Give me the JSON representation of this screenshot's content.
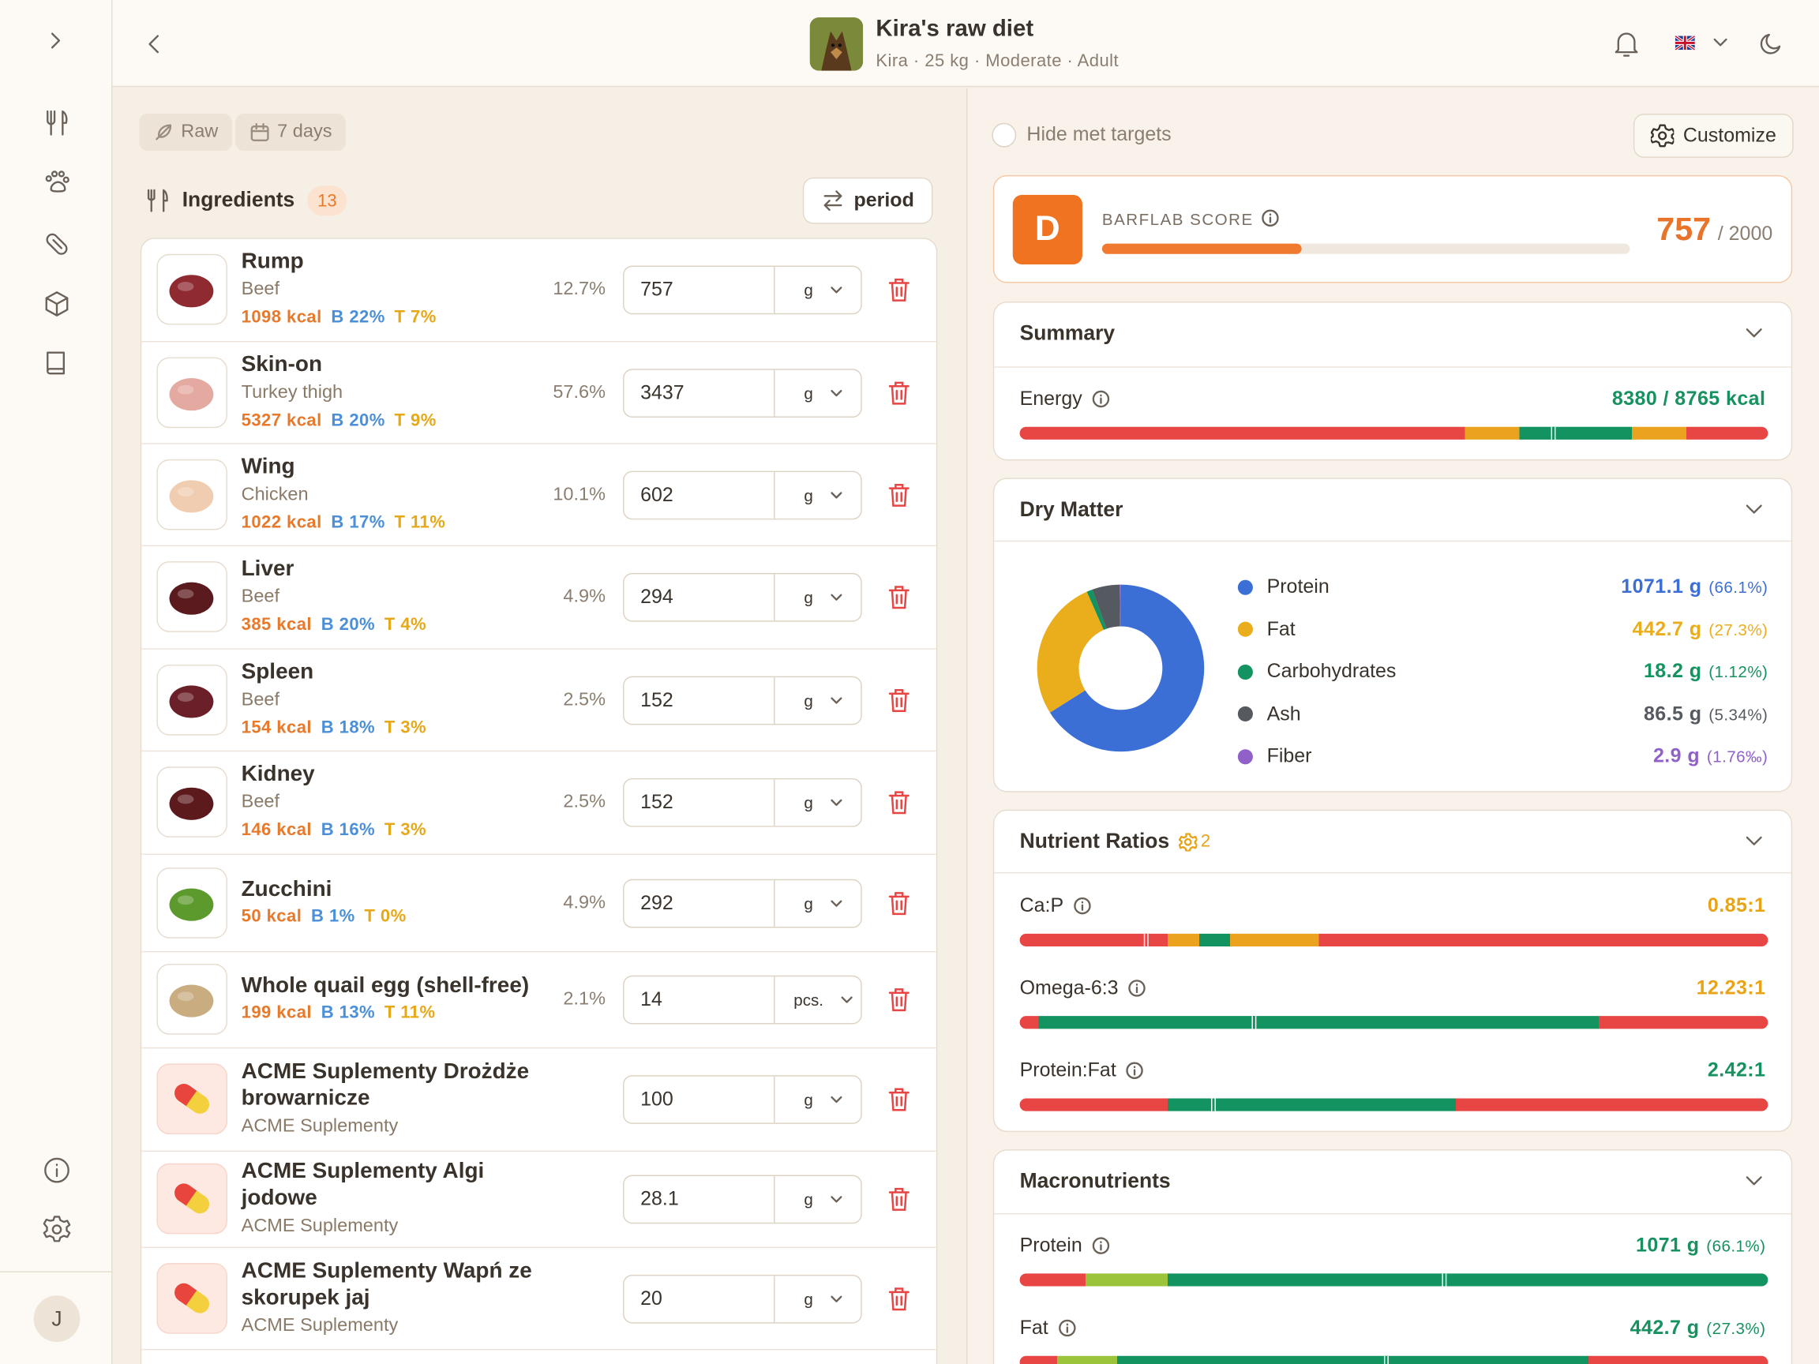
{
  "sidebar": {
    "avatar": "J"
  },
  "header": {
    "title": "Kira's raw diet",
    "subtitle": "Kira · 25 kg · Moderate · Adult"
  },
  "filters": [
    "Raw",
    "7 days"
  ],
  "ingredients": {
    "title": "Ingredients",
    "count": 13,
    "button": "period",
    "items": [
      {
        "name": "Rump",
        "sub": "Beef",
        "kcal": "1098 kcal",
        "b": "B 22%",
        "t": "T 7%",
        "pct": "12.7%",
        "amount": "757",
        "unit": "g",
        "thumb_color": "#8e2a30"
      },
      {
        "name": "Skin-on",
        "sub": "Turkey thigh",
        "kcal": "5327 kcal",
        "b": "B 20%",
        "t": "T 9%",
        "pct": "57.6%",
        "amount": "3437",
        "unit": "g",
        "thumb_color": "#e4a9a0"
      },
      {
        "name": "Wing",
        "sub": "Chicken",
        "kcal": "1022 kcal",
        "b": "B 17%",
        "t": "T 11%",
        "pct": "10.1%",
        "amount": "602",
        "unit": "g",
        "thumb_color": "#f0cdb0"
      },
      {
        "name": "Liver",
        "sub": "Beef",
        "kcal": "385 kcal",
        "b": "B 20%",
        "t": "T 4%",
        "pct": "4.9%",
        "amount": "294",
        "unit": "g",
        "thumb_color": "#5a1a1e"
      },
      {
        "name": "Spleen",
        "sub": "Beef",
        "kcal": "154 kcal",
        "b": "B 18%",
        "t": "T 3%",
        "pct": "2.5%",
        "amount": "152",
        "unit": "g",
        "thumb_color": "#6b1f28"
      },
      {
        "name": "Kidney",
        "sub": "Beef",
        "kcal": "146 kcal",
        "b": "B 16%",
        "t": "T 3%",
        "pct": "2.5%",
        "amount": "152",
        "unit": "g",
        "thumb_color": "#5c1a1c"
      },
      {
        "name": "Zucchini",
        "kcal": "50 kcal",
        "b": "B 1%",
        "t": "T 0%",
        "pct": "4.9%",
        "amount": "292",
        "unit": "g",
        "thumb_color": "#5c9a2e"
      },
      {
        "name": "Whole quail egg (shell-free)",
        "kcal": "199 kcal",
        "b": "B 13%",
        "t": "T 11%",
        "pct": "2.1%",
        "amount": "14",
        "unit": "pcs.",
        "thumb_color": "#c9ad80"
      },
      {
        "name": "ACME Suplementy Drożdże browarnicze",
        "sub": "ACME Suplementy",
        "amount": "100",
        "unit": "g"
      },
      {
        "name": "ACME Suplementy Algi jodowe",
        "sub": "ACME Suplementy",
        "amount": "28.1",
        "unit": "g"
      },
      {
        "name": "ACME Suplementy Wapń ze skorupek jaj",
        "sub": "ACME Suplementy",
        "amount": "20",
        "unit": "g"
      }
    ]
  },
  "panel": {
    "hide_met": "Hide met targets",
    "customize": "Customize",
    "score": {
      "grade": "D",
      "label": "BARFLAB SCORE",
      "value": "757",
      "max": "/ 2000"
    },
    "summary": {
      "title": "Summary",
      "rows": [
        {
          "name": "Energy",
          "value": "8380 / 8765 kcal",
          "color": "#16915f"
        }
      ]
    },
    "dry_matter": {
      "title": "Dry Matter",
      "items": [
        {
          "name": "Protein",
          "value": 1071.1,
          "value_label": "1071.1 g",
          "share": "(66.1%)",
          "color": "#3b6fd6"
        },
        {
          "name": "Fat",
          "value": 442.7,
          "value_label": "442.7 g",
          "share": "(27.3%)",
          "color": "#eaad1c"
        },
        {
          "name": "Carbohydrates",
          "value": 18.2,
          "value_label": "18.2 g",
          "share": "(1.12%)",
          "color": "#12935f"
        },
        {
          "name": "Ash",
          "value": 86.5,
          "value_label": "86.5 g",
          "share": "(5.34%)",
          "color": "#555a60"
        },
        {
          "name": "Fiber",
          "value": 2.9,
          "value_label": "2.9 g",
          "share": "(1.76‰)",
          "color": "#9061c9"
        }
      ]
    },
    "ratios": {
      "title": "Nutrient Ratios",
      "badge": "2",
      "rows": [
        {
          "name": "Ca:P",
          "value": "0.85:1",
          "color": "#e8a317"
        },
        {
          "name": "Omega-6:3",
          "value": "12.23:1",
          "color": "#e8a317"
        },
        {
          "name": "Protein:Fat",
          "value": "2.42:1",
          "color": "#16915f"
        }
      ]
    },
    "macros": {
      "title": "Macronutrients",
      "rows": [
        {
          "name": "Protein",
          "value": "1071 g",
          "share": "(66.1%)",
          "color": "#16915f"
        },
        {
          "name": "Fat",
          "value": "442.7 g",
          "share": "(27.3%)",
          "color": "#16915f"
        }
      ]
    }
  }
}
